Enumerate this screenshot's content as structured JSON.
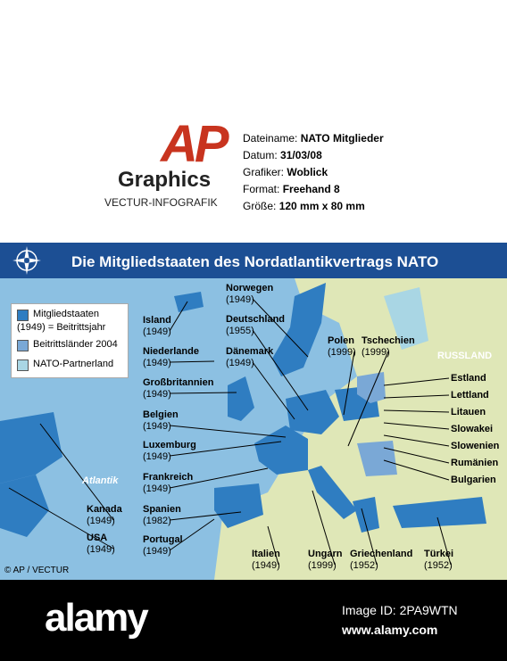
{
  "header": {
    "logo": "AP",
    "logo_sub": "Graphics",
    "agency": "VECTUR-INFOGRAFIK",
    "meta": [
      {
        "label": "Dateiname:",
        "value": "NATO Mitglieder"
      },
      {
        "label": "Datum:",
        "value": "31/03/08"
      },
      {
        "label": "Grafiker:",
        "value": "Woblick"
      },
      {
        "label": "Format:",
        "value": "Freehand 8"
      },
      {
        "label": "Größe:",
        "value": "120 mm x 80 mm"
      }
    ]
  },
  "map": {
    "title": "Die Mitgliedstaaten des Nordatlantikvertrags NATO",
    "legend": [
      {
        "label": "Mitgliedstaaten",
        "sub": "(1949) = Beitrittsjahr",
        "color": "#2f7dc1"
      },
      {
        "label": "Beitrittsländer 2004",
        "color": "#7aa8d6"
      },
      {
        "label": "NATO-Partnerland",
        "color": "#a9d6e4"
      }
    ],
    "regions": [
      "RUSSLAND",
      "Atlantik"
    ],
    "countries": [
      {
        "name": "Island",
        "year": "(1949)"
      },
      {
        "name": "Niederlande",
        "year": "(1949)"
      },
      {
        "name": "Großbritannien",
        "year": "(1949)"
      },
      {
        "name": "Belgien",
        "year": "(1949)"
      },
      {
        "name": "Luxemburg",
        "year": "(1949)"
      },
      {
        "name": "Frankreich",
        "year": "(1949)"
      },
      {
        "name": "Spanien",
        "year": "(1982)"
      },
      {
        "name": "Portugal",
        "year": "(1949)"
      },
      {
        "name": "Kanada",
        "year": "(1949)"
      },
      {
        "name": "USA",
        "year": "(1949)"
      },
      {
        "name": "Norwegen",
        "year": "(1949)"
      },
      {
        "name": "Deutschland",
        "year": "(1955)"
      },
      {
        "name": "Dänemark",
        "year": "(1949)"
      },
      {
        "name": "Polen",
        "year": "(1999)"
      },
      {
        "name": "Tschechien",
        "year": "(1999)"
      },
      {
        "name": "Italien",
        "year": "(1949)"
      },
      {
        "name": "Ungarn",
        "year": "(1999)"
      },
      {
        "name": "Griechenland",
        "year": "(1952)"
      },
      {
        "name": "Türkei",
        "year": "(1952)"
      }
    ],
    "new_members": [
      "Estland",
      "Lettland",
      "Litauen",
      "Slowakei",
      "Slowenien",
      "Rumänien",
      "Bulgarien"
    ],
    "credit": "© AP / VECTUR"
  },
  "footer": {
    "brand": "alamy",
    "image_id": "Image ID: 2PA9WTN",
    "url": "www.alamy.com"
  }
}
